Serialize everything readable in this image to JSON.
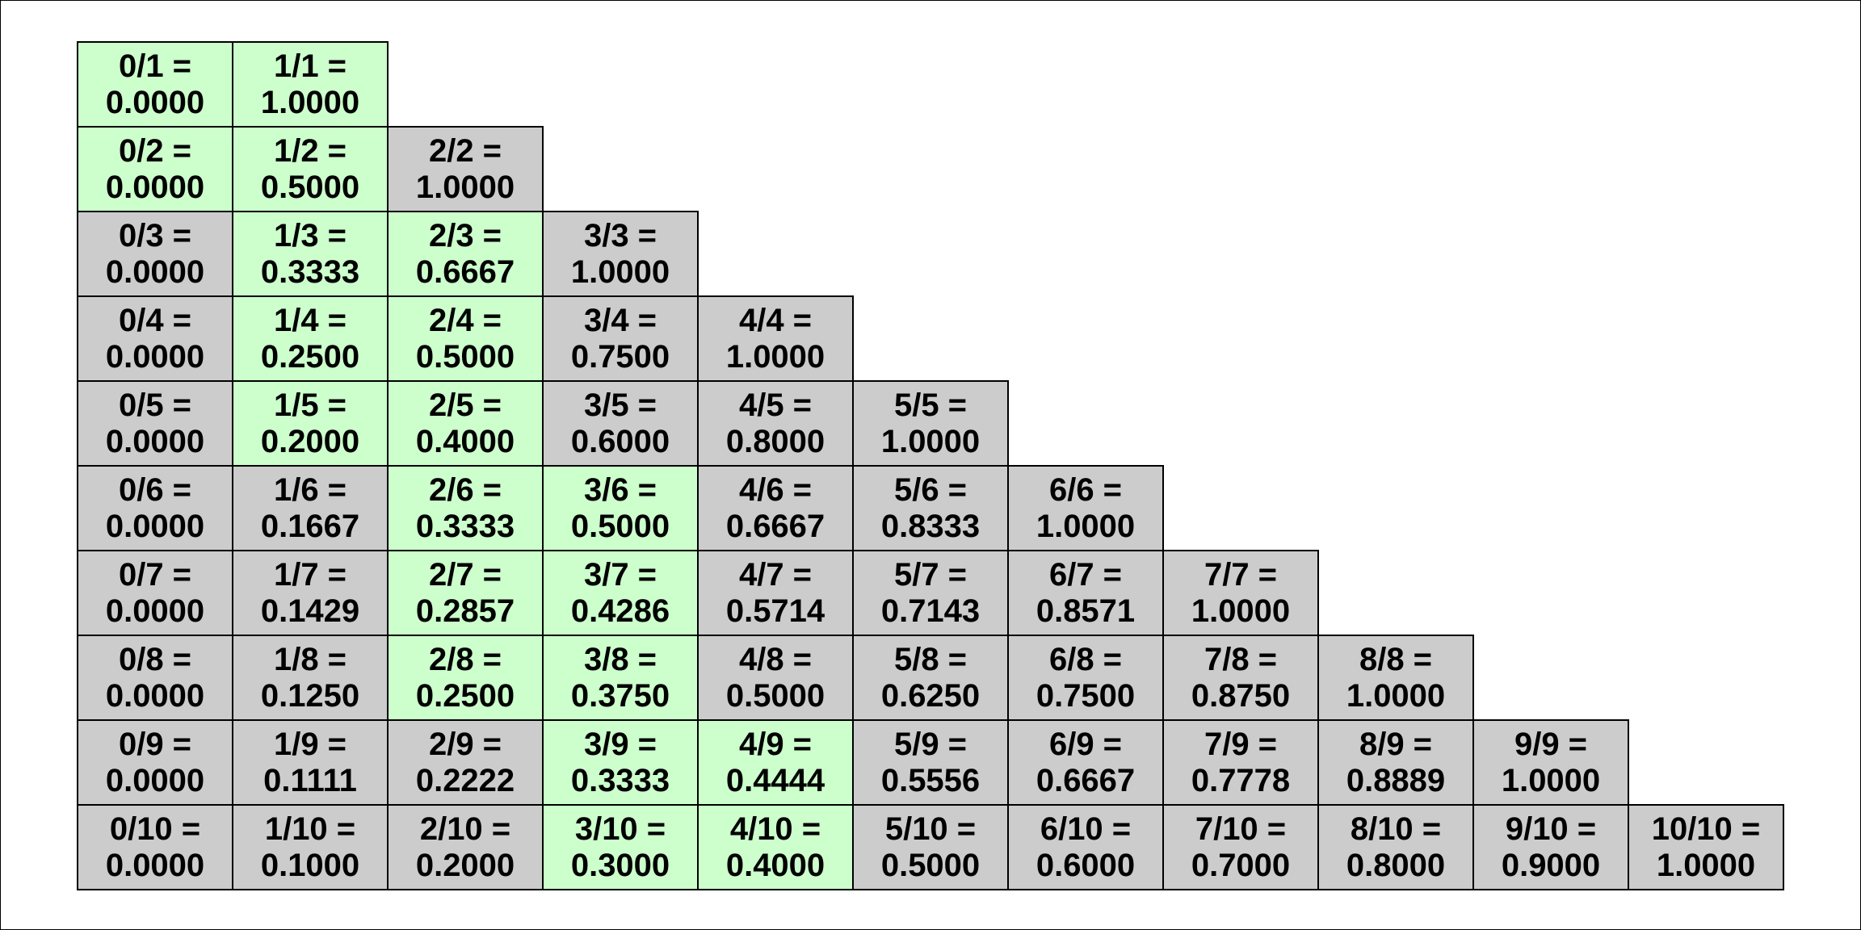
{
  "table": {
    "rows": [
      {
        "cells": [
          {
            "text": "0/1 =",
            "value": "0.0000",
            "fill": "#ccffcc"
          },
          {
            "text": "1/1 =",
            "value": "1.0000",
            "fill": "#ccffcc"
          }
        ]
      },
      {
        "cells": [
          {
            "text": "0/2 =",
            "value": "0.0000",
            "fill": "#ccffcc"
          },
          {
            "text": "1/2 =",
            "value": "0.5000",
            "fill": "#ccffcc"
          },
          {
            "text": "2/2 =",
            "value": "1.0000",
            "fill": "#cccccc"
          }
        ]
      },
      {
        "cells": [
          {
            "text": "0/3 =",
            "value": "0.0000",
            "fill": "#cccccc"
          },
          {
            "text": "1/3 =",
            "value": "0.3333",
            "fill": "#ccffcc"
          },
          {
            "text": "2/3 =",
            "value": "0.6667",
            "fill": "#ccffcc"
          },
          {
            "text": "3/3 =",
            "value": "1.0000",
            "fill": "#cccccc"
          }
        ]
      },
      {
        "cells": [
          {
            "text": "0/4 =",
            "value": "0.0000",
            "fill": "#cccccc"
          },
          {
            "text": "1/4 =",
            "value": "0.2500",
            "fill": "#ccffcc"
          },
          {
            "text": "2/4 =",
            "value": "0.5000",
            "fill": "#ccffcc"
          },
          {
            "text": "3/4 =",
            "value": "0.7500",
            "fill": "#cccccc"
          },
          {
            "text": "4/4 =",
            "value": "1.0000",
            "fill": "#cccccc"
          }
        ]
      },
      {
        "cells": [
          {
            "text": "0/5 =",
            "value": "0.0000",
            "fill": "#cccccc"
          },
          {
            "text": "1/5 =",
            "value": "0.2000",
            "fill": "#ccffcc"
          },
          {
            "text": "2/5 =",
            "value": "0.4000",
            "fill": "#ccffcc"
          },
          {
            "text": "3/5 =",
            "value": "0.6000",
            "fill": "#cccccc"
          },
          {
            "text": "4/5 =",
            "value": "0.8000",
            "fill": "#cccccc"
          },
          {
            "text": "5/5 =",
            "value": "1.0000",
            "fill": "#cccccc"
          }
        ]
      },
      {
        "cells": [
          {
            "text": "0/6 =",
            "value": "0.0000",
            "fill": "#cccccc"
          },
          {
            "text": "1/6 =",
            "value": "0.1667",
            "fill": "#cccccc"
          },
          {
            "text": "2/6 =",
            "value": "0.3333",
            "fill": "#ccffcc"
          },
          {
            "text": "3/6 =",
            "value": "0.5000",
            "fill": "#ccffcc"
          },
          {
            "text": "4/6 =",
            "value": "0.6667",
            "fill": "#cccccc"
          },
          {
            "text": "5/6 =",
            "value": "0.8333",
            "fill": "#cccccc"
          },
          {
            "text": "6/6 =",
            "value": "1.0000",
            "fill": "#cccccc"
          }
        ]
      },
      {
        "cells": [
          {
            "text": "0/7 =",
            "value": "0.0000",
            "fill": "#cccccc"
          },
          {
            "text": "1/7 =",
            "value": "0.1429",
            "fill": "#cccccc"
          },
          {
            "text": "2/7 =",
            "value": "0.2857",
            "fill": "#ccffcc"
          },
          {
            "text": "3/7 =",
            "value": "0.4286",
            "fill": "#ccffcc"
          },
          {
            "text": "4/7 =",
            "value": "0.5714",
            "fill": "#cccccc"
          },
          {
            "text": "5/7 =",
            "value": "0.7143",
            "fill": "#cccccc"
          },
          {
            "text": "6/7 =",
            "value": "0.8571",
            "fill": "#cccccc"
          },
          {
            "text": "7/7 =",
            "value": "1.0000",
            "fill": "#cccccc"
          }
        ]
      },
      {
        "cells": [
          {
            "text": "0/8 =",
            "value": "0.0000",
            "fill": "#cccccc"
          },
          {
            "text": "1/8 =",
            "value": "0.1250",
            "fill": "#cccccc"
          },
          {
            "text": "2/8 =",
            "value": "0.2500",
            "fill": "#ccffcc"
          },
          {
            "text": "3/8 =",
            "value": "0.3750",
            "fill": "#ccffcc"
          },
          {
            "text": "4/8 =",
            "value": "0.5000",
            "fill": "#cccccc"
          },
          {
            "text": "5/8 =",
            "value": "0.6250",
            "fill": "#cccccc"
          },
          {
            "text": "6/8 =",
            "value": "0.7500",
            "fill": "#cccccc"
          },
          {
            "text": "7/8 =",
            "value": "0.8750",
            "fill": "#cccccc"
          },
          {
            "text": "8/8 =",
            "value": "1.0000",
            "fill": "#cccccc"
          }
        ]
      },
      {
        "cells": [
          {
            "text": "0/9 =",
            "value": "0.0000",
            "fill": "#cccccc"
          },
          {
            "text": "1/9 =",
            "value": "0.1111",
            "fill": "#cccccc"
          },
          {
            "text": "2/9 =",
            "value": "0.2222",
            "fill": "#cccccc"
          },
          {
            "text": "3/9 =",
            "value": "0.3333",
            "fill": "#ccffcc"
          },
          {
            "text": "4/9 =",
            "value": "0.4444",
            "fill": "#ccffcc"
          },
          {
            "text": "5/9 =",
            "value": "0.5556",
            "fill": "#cccccc"
          },
          {
            "text": "6/9 =",
            "value": "0.6667",
            "fill": "#cccccc"
          },
          {
            "text": "7/9 =",
            "value": "0.7778",
            "fill": "#cccccc"
          },
          {
            "text": "8/9 =",
            "value": "0.8889",
            "fill": "#cccccc"
          },
          {
            "text": "9/9 =",
            "value": "1.0000",
            "fill": "#cccccc"
          }
        ]
      },
      {
        "cells": [
          {
            "text": "0/10 =",
            "value": "0.0000",
            "fill": "#cccccc"
          },
          {
            "text": "1/10 =",
            "value": "0.1000",
            "fill": "#cccccc"
          },
          {
            "text": "2/10 =",
            "value": "0.2000",
            "fill": "#cccccc"
          },
          {
            "text": "3/10 =",
            "value": "0.3000",
            "fill": "#ccffcc"
          },
          {
            "text": "4/10 =",
            "value": "0.4000",
            "fill": "#ccffcc"
          },
          {
            "text": "5/10 =",
            "value": "0.5000",
            "fill": "#cccccc"
          },
          {
            "text": "6/10 =",
            "value": "0.6000",
            "fill": "#cccccc"
          },
          {
            "text": "7/10 =",
            "value": "0.7000",
            "fill": "#cccccc"
          },
          {
            "text": "8/10 =",
            "value": "0.8000",
            "fill": "#cccccc"
          },
          {
            "text": "9/10 =",
            "value": "0.9000",
            "fill": "#cccccc"
          },
          {
            "text": "10/10 =",
            "value": "1.0000",
            "fill": "#cccccc"
          }
        ]
      }
    ]
  }
}
